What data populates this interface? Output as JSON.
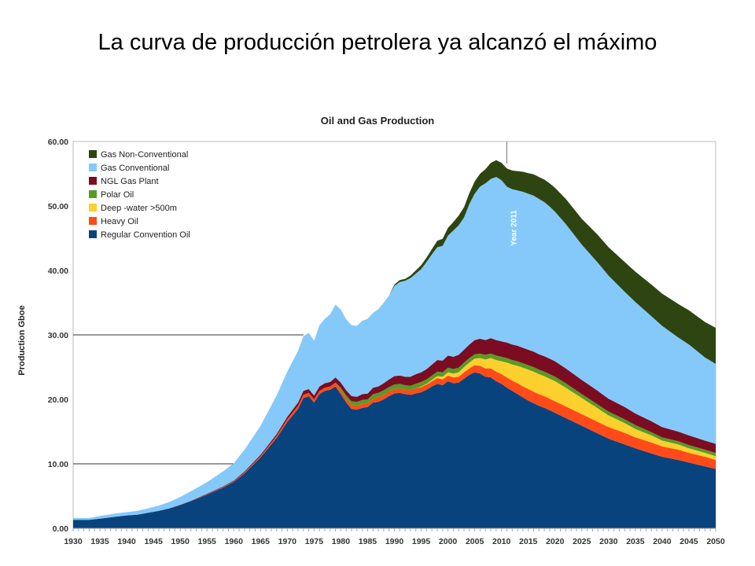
{
  "slide": {
    "title": "La curva de producción petrolera ya alcanzó el máximo"
  },
  "chart_data": {
    "type": "area",
    "stacked": true,
    "title": "Oil and Gas Production",
    "xlabel": "",
    "ylabel": "Production Gboe",
    "xlim": [
      1930,
      2050
    ],
    "ylim": [
      0,
      60
    ],
    "yticks": [
      "0.00",
      "10.00",
      "20.00",
      "30.00",
      "40.00",
      "50.00",
      "60.00"
    ],
    "xticks": [
      "1930",
      "1935",
      "1940",
      "1945",
      "1950",
      "1955",
      "1960",
      "1965",
      "1970",
      "1975",
      "1980",
      "1985",
      "1990",
      "1995",
      "2000",
      "2005",
      "2010",
      "2015",
      "2020",
      "2025",
      "2030",
      "2035",
      "2040",
      "2045",
      "2050"
    ],
    "grid": "none",
    "legend_position": "top-left",
    "annotation": {
      "text": "Year 2011",
      "x": 2011
    },
    "x": [
      1930,
      1933,
      1935,
      1938,
      1940,
      1942,
      1944,
      1946,
      1948,
      1950,
      1952,
      1955,
      1958,
      1960,
      1962,
      1965,
      1968,
      1970,
      1972,
      1973,
      1974,
      1975,
      1976,
      1977,
      1978,
      1979,
      1980,
      1981,
      1982,
      1983,
      1984,
      1985,
      1986,
      1987,
      1988,
      1989,
      1990,
      1991,
      1992,
      1993,
      1994,
      1995,
      1996,
      1997,
      1998,
      1999,
      2000,
      2001,
      2002,
      2003,
      2004,
      2005,
      2006,
      2007,
      2008,
      2009,
      2010,
      2011,
      2012,
      2013,
      2014,
      2015,
      2016,
      2017,
      2018,
      2019,
      2020,
      2022,
      2025,
      2028,
      2030,
      2033,
      2035,
      2038,
      2040,
      2043,
      2045,
      2048,
      2050
    ],
    "series": [
      {
        "name": "Regular Convention Oil",
        "color": "#08437e",
        "values": [
          1.3,
          1.3,
          1.5,
          1.8,
          2.0,
          2.1,
          2.4,
          2.7,
          3.1,
          3.6,
          4.2,
          5.2,
          6.3,
          7.2,
          8.5,
          11.0,
          14.0,
          16.5,
          18.5,
          20.2,
          20.5,
          19.5,
          20.8,
          21.3,
          21.5,
          22.0,
          20.8,
          19.5,
          18.5,
          18.4,
          18.7,
          18.8,
          19.5,
          19.6,
          20.0,
          20.5,
          20.9,
          21.0,
          20.8,
          20.7,
          20.9,
          21.1,
          21.5,
          22.0,
          22.4,
          22.2,
          22.8,
          22.5,
          22.6,
          23.2,
          23.8,
          24.2,
          24.0,
          23.5,
          23.4,
          22.8,
          22.4,
          21.8,
          21.3,
          20.8,
          20.3,
          19.8,
          19.4,
          19.0,
          18.7,
          18.3,
          17.9,
          17.1,
          15.9,
          14.7,
          13.9,
          13.0,
          12.4,
          11.6,
          11.1,
          10.6,
          10.2,
          9.6,
          9.2
        ]
      },
      {
        "name": "Heavy Oil",
        "color": "#ff4a1a",
        "values": [
          0,
          0,
          0,
          0,
          0,
          0,
          0,
          0,
          0,
          0,
          0,
          0.05,
          0.1,
          0.1,
          0.15,
          0.2,
          0.3,
          0.4,
          0.5,
          0.5,
          0.5,
          0.5,
          0.5,
          0.5,
          0.5,
          0.6,
          0.6,
          0.6,
          0.6,
          0.6,
          0.6,
          0.6,
          0.6,
          0.7,
          0.7,
          0.7,
          0.7,
          0.7,
          0.7,
          0.7,
          0.8,
          0.8,
          0.8,
          0.8,
          0.9,
          0.9,
          0.9,
          0.9,
          0.9,
          1.0,
          1.0,
          1.1,
          1.2,
          1.3,
          1.4,
          1.5,
          1.5,
          1.6,
          1.6,
          1.7,
          1.7,
          1.8,
          1.8,
          1.8,
          1.8,
          1.8,
          1.8,
          1.8,
          1.8,
          1.8,
          1.8,
          1.8,
          1.7,
          1.7,
          1.6,
          1.6,
          1.5,
          1.5,
          1.4
        ]
      },
      {
        "name": "Deep -water >500m",
        "color": "#fed02e",
        "values": [
          0,
          0,
          0,
          0,
          0,
          0,
          0,
          0,
          0,
          0,
          0,
          0,
          0,
          0,
          0,
          0,
          0,
          0,
          0,
          0,
          0,
          0,
          0,
          0,
          0,
          0,
          0,
          0,
          0,
          0,
          0,
          0,
          0,
          0,
          0,
          0,
          0,
          0,
          0,
          0,
          0,
          0.1,
          0.1,
          0.2,
          0.3,
          0.4,
          0.5,
          0.6,
          0.7,
          0.8,
          0.9,
          1.0,
          1.2,
          1.4,
          1.6,
          1.8,
          2.0,
          2.3,
          2.5,
          2.7,
          2.9,
          3.0,
          3.1,
          3.1,
          3.1,
          3.1,
          3.1,
          2.9,
          2.5,
          2.1,
          1.8,
          1.5,
          1.3,
          1.1,
          0.9,
          0.8,
          0.7,
          0.6,
          0.6
        ]
      },
      {
        "name": "Polar Oil",
        "color": "#5a9a25",
        "values": [
          0,
          0,
          0,
          0,
          0,
          0,
          0,
          0,
          0,
          0,
          0,
          0,
          0,
          0,
          0,
          0,
          0,
          0,
          0,
          0,
          0,
          0,
          0,
          0,
          0,
          0,
          0.4,
          0.5,
          0.6,
          0.6,
          0.6,
          0.6,
          0.7,
          0.7,
          0.7,
          0.7,
          0.7,
          0.7,
          0.7,
          0.7,
          0.7,
          0.7,
          0.7,
          0.7,
          0.7,
          0.7,
          0.7,
          0.7,
          0.7,
          0.7,
          0.7,
          0.7,
          0.7,
          0.7,
          0.7,
          0.7,
          0.7,
          0.7,
          0.7,
          0.7,
          0.7,
          0.7,
          0.7,
          0.7,
          0.7,
          0.7,
          0.7,
          0.7,
          0.6,
          0.6,
          0.6,
          0.6,
          0.6,
          0.5,
          0.5,
          0.5,
          0.5,
          0.5,
          0.5
        ]
      },
      {
        "name": "NGL Gas Plant",
        "color": "#7b0c22",
        "values": [
          0,
          0,
          0,
          0,
          0,
          0,
          0,
          0,
          0,
          0.05,
          0.05,
          0.1,
          0.1,
          0.1,
          0.15,
          0.2,
          0.3,
          0.4,
          0.5,
          0.6,
          0.6,
          0.6,
          0.7,
          0.7,
          0.7,
          0.8,
          0.8,
          0.8,
          0.8,
          0.8,
          0.9,
          0.9,
          1.0,
          1.0,
          1.1,
          1.2,
          1.3,
          1.3,
          1.3,
          1.4,
          1.5,
          1.5,
          1.6,
          1.7,
          1.8,
          1.8,
          1.9,
          1.9,
          2.0,
          2.0,
          2.1,
          2.2,
          2.3,
          2.3,
          2.4,
          2.4,
          2.4,
          2.4,
          2.4,
          2.4,
          2.4,
          2.4,
          2.4,
          2.4,
          2.4,
          2.4,
          2.4,
          2.3,
          2.2,
          2.1,
          2.0,
          1.9,
          1.8,
          1.7,
          1.6,
          1.5,
          1.5,
          1.4,
          1.4
        ]
      },
      {
        "name": "Gas Conventional",
        "color": "#84c9f9",
        "values": [
          0.3,
          0.3,
          0.4,
          0.5,
          0.5,
          0.6,
          0.7,
          0.8,
          1.0,
          1.2,
          1.5,
          1.8,
          2.3,
          2.7,
          3.4,
          4.5,
          6.0,
          7.0,
          8.0,
          8.5,
          8.7,
          8.5,
          9.5,
          10.0,
          10.5,
          11.3,
          11.3,
          11.0,
          11.0,
          11.0,
          11.4,
          11.6,
          11.6,
          12.0,
          12.5,
          13.0,
          14.0,
          14.5,
          14.9,
          15.3,
          15.6,
          16.0,
          16.6,
          17.1,
          17.5,
          17.8,
          18.6,
          19.6,
          20.1,
          20.5,
          21.8,
          22.7,
          23.6,
          24.3,
          24.7,
          25.3,
          25.0,
          24.2,
          24.1,
          24.1,
          24.2,
          24.2,
          24.2,
          24.1,
          23.9,
          23.6,
          23.2,
          22.4,
          21.0,
          19.9,
          19.1,
          17.9,
          17.3,
          16.3,
          15.7,
          14.6,
          14.1,
          12.9,
          12.4
        ]
      },
      {
        "name": "Gas Non-Conventional",
        "color": "#2e4511",
        "values": [
          0,
          0,
          0,
          0,
          0,
          0,
          0,
          0,
          0,
          0,
          0,
          0,
          0,
          0,
          0,
          0,
          0,
          0,
          0,
          0,
          0,
          0,
          0,
          0,
          0,
          0,
          0,
          0,
          0,
          0,
          0,
          0,
          0,
          0,
          0,
          0,
          0.2,
          0.3,
          0.3,
          0.4,
          0.5,
          0.6,
          0.7,
          0.8,
          1.0,
          1.1,
          1.2,
          1.3,
          1.5,
          1.6,
          1.7,
          1.9,
          2.0,
          2.2,
          2.5,
          2.6,
          2.7,
          2.8,
          2.9,
          3.0,
          3.1,
          3.2,
          3.3,
          3.4,
          3.5,
          3.6,
          3.7,
          3.9,
          4.0,
          4.3,
          4.4,
          4.6,
          4.7,
          4.9,
          5.0,
          5.2,
          5.3,
          5.5,
          5.6
        ]
      }
    ]
  }
}
